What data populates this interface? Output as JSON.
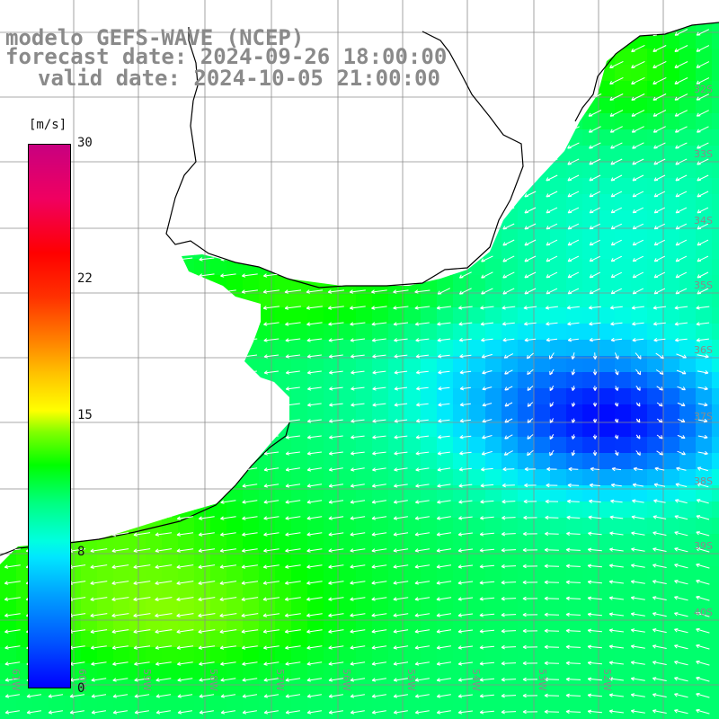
{
  "title": {
    "line1": "modelo GEFS-WAVE (NCEP)",
    "line2": "forecast date: 2024-09-26 18:00:00",
    "line3": "valid date: 2024-10-05 21:00:00"
  },
  "colorbar": {
    "unit": "[m/s]",
    "ticks": [
      {
        "label": "30",
        "value": 30
      },
      {
        "label": "22",
        "value": 22
      },
      {
        "label": "15",
        "value": 15
      },
      {
        "label": "8",
        "value": 8
      },
      {
        "label": "0",
        "value": 0
      }
    ]
  },
  "axes": {
    "lat_labels": [
      "32S",
      "33S",
      "34S",
      "35S",
      "36S",
      "37S",
      "38S",
      "39S",
      "40S"
    ],
    "lon_labels": [
      "61W",
      "60W",
      "59W",
      "58W",
      "57W",
      "56W",
      "55W",
      "54W",
      "53W",
      "52W"
    ]
  },
  "colors": {
    "land": "#ffffff",
    "grid": "#8c8c8c",
    "coast": "#000000",
    "arrow": "#ffffff",
    "labels": "#8a8a8a"
  }
}
